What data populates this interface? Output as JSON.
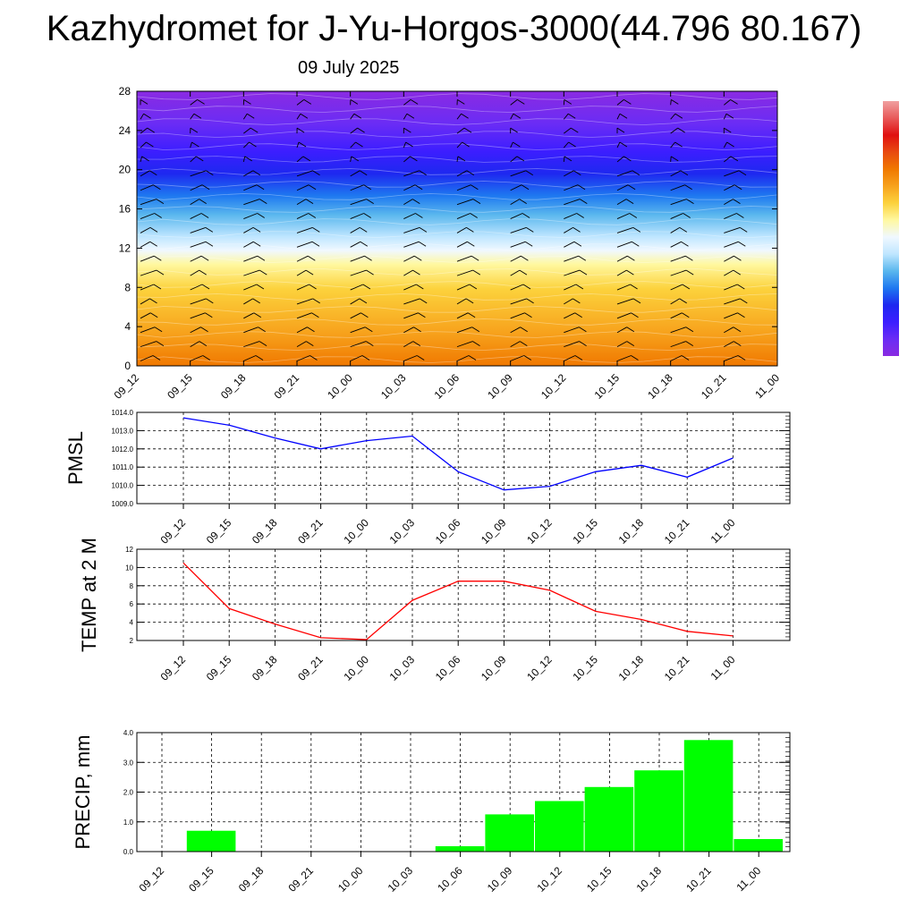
{
  "header": {
    "title": "Kazhydromet for J-Yu-Horgos-3000(44.796 80.167)",
    "date": "09 July 2025"
  },
  "times": [
    "09_12",
    "09_15",
    "09_18",
    "09_21",
    "10_00",
    "10_03",
    "10_06",
    "10_09",
    "10_12",
    "10_15",
    "10_18",
    "10_21",
    "11_00"
  ],
  "chart_data": [
    {
      "type": "heatmap",
      "name": "cross-section",
      "y_ticks": [
        "0",
        "4",
        "8",
        "12",
        "16",
        "20",
        "24",
        "28"
      ],
      "ylim": [
        0,
        28
      ],
      "x_categories": [
        "09_12",
        "09_15",
        "09_18",
        "09_21",
        "10_00",
        "10_03",
        "10_06",
        "10_09",
        "10_12",
        "10_15",
        "10_18",
        "10_21",
        "11_00"
      ],
      "colorscale": [
        "#f07800",
        "#f7a21c",
        "#fcd23c",
        "#fff8a0",
        "#f0f8ff",
        "#bfe6ff",
        "#5ab7ee",
        "#1e78f0",
        "#1e28f0",
        "#3c1eff",
        "#6a2cf5",
        "#8a2be2"
      ],
      "colorbar_colors": [
        "#8a2be2",
        "#6a2cf5",
        "#3c1eff",
        "#1e28f0",
        "#1e78f0",
        "#5ab7ee",
        "#bfe6ff",
        "#f0f8ff",
        "#fff8a0",
        "#fcd23c",
        "#f7a21c",
        "#f07800",
        "#e84a10",
        "#e01010",
        "#e85a5a",
        "#f0a0a0"
      ],
      "has_wind_barbs": true
    },
    {
      "type": "line",
      "name": "pmsl",
      "ylabel": "PMSL",
      "y_ticks": [
        "1009.0",
        "1010.0",
        "1011.0",
        "1012.0",
        "1013.0",
        "1014.0"
      ],
      "ylim": [
        1009,
        1014
      ],
      "color": "#0000ff",
      "categories": [
        "09_12",
        "09_15",
        "09_18",
        "09_21",
        "10_00",
        "10_03",
        "10_06",
        "10_09",
        "10_12",
        "10_15",
        "10_18",
        "10_21",
        "11_00"
      ],
      "values": [
        1013.7,
        1013.3,
        1012.6,
        1012.0,
        1012.45,
        1012.7,
        1010.75,
        1009.75,
        1009.95,
        1010.75,
        1011.1,
        1010.45,
        1011.5
      ],
      "grid": true
    },
    {
      "type": "line",
      "name": "temp",
      "ylabel": "TEMP at 2 M",
      "y_ticks": [
        "2",
        "4",
        "6",
        "8",
        "10",
        "12"
      ],
      "ylim": [
        2,
        12
      ],
      "color": "#ff0000",
      "categories": [
        "09_12",
        "09_15",
        "09_18",
        "09_21",
        "10_00",
        "10_03",
        "10_06",
        "10_09",
        "10_12",
        "10_15",
        "10_18",
        "10_21",
        "11_00"
      ],
      "values": [
        10.5,
        5.5,
        3.8,
        2.3,
        2.1,
        6.4,
        8.5,
        8.5,
        7.5,
        5.2,
        4.3,
        3.0,
        2.5
      ],
      "grid": true
    },
    {
      "type": "bar",
      "name": "precip",
      "ylabel": "PRECIP, mm",
      "y_ticks": [
        "0.0",
        "1.0",
        "2.0",
        "3.0",
        "4.0"
      ],
      "ylim": [
        0,
        4
      ],
      "color": "#00ff00",
      "categories": [
        "09_12",
        "09_15",
        "09_18",
        "09_21",
        "10_00",
        "10_03",
        "10_06",
        "10_09",
        "10_12",
        "10_15",
        "10_18",
        "10_21",
        "11_00"
      ],
      "values": [
        0,
        0.7,
        0,
        0,
        0,
        0,
        0.18,
        1.25,
        1.7,
        2.17,
        2.73,
        3.75,
        0.42
      ],
      "grid": true
    }
  ]
}
